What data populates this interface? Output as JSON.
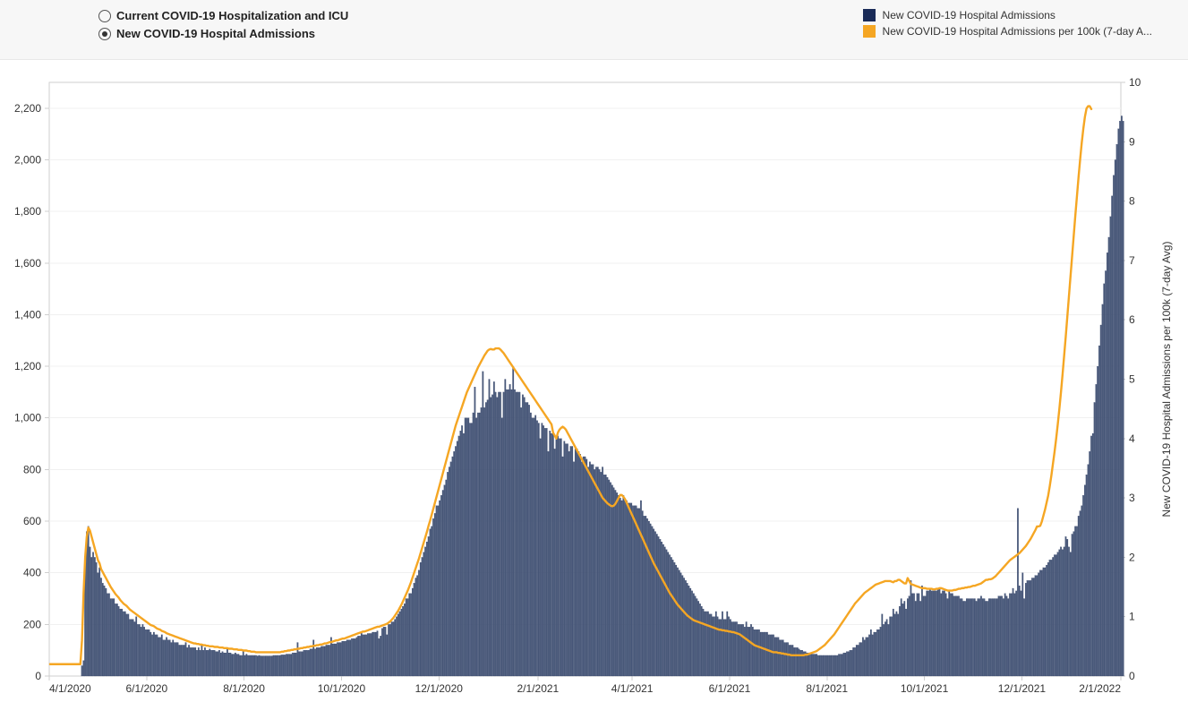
{
  "header": {
    "radios": [
      {
        "label": "Current COVID-19 Hospitalization and ICU",
        "selected": false
      },
      {
        "label": "New COVID-19 Hospital Admissions",
        "selected": true
      }
    ]
  },
  "legend": {
    "items": [
      {
        "label": "New COVID-19 Hospital Admissions",
        "color": "#1a2b58",
        "type": "bar"
      },
      {
        "label": "New COVID-19 Hospital Admissions per 100k (7-day A...",
        "color": "#f5a623",
        "type": "line"
      }
    ]
  },
  "chart": {
    "type": "bar+line",
    "background_color": "#ffffff",
    "grid_color": "#f0f0f0",
    "axis_color": "#cfcfcf",
    "bar_color": "#4a5a7a",
    "bar_edge_color": "#1a2b58",
    "line_color": "#f5a623",
    "line_width": 2.4,
    "y_left": {
      "min": 0,
      "max": 2300,
      "ticks": [
        0,
        200,
        400,
        600,
        800,
        1000,
        1200,
        1400,
        1600,
        1800,
        2000,
        2200
      ],
      "label_fontsize": 12
    },
    "y_right": {
      "min": 0,
      "max": 10,
      "ticks": [
        0,
        1,
        2,
        3,
        4,
        5,
        6,
        7,
        8,
        9,
        10
      ],
      "label": "New COVID-19 Hospital Admissions per 100k (7-day Avg)",
      "label_fontsize": 12
    },
    "x": {
      "start": "4/1/2020",
      "end": "2/1/2022",
      "tick_labels": [
        "4/1/2020",
        "6/1/2020",
        "8/1/2020",
        "10/1/2020",
        "12/1/2020",
        "2/1/2021",
        "4/1/2021",
        "6/1/2021",
        "8/1/2021",
        "10/1/2021",
        "12/1/2021",
        "2/1/2022"
      ],
      "tick_days": [
        0,
        61,
        122,
        183,
        244,
        306,
        365,
        426,
        487,
        548,
        609,
        671
      ]
    },
    "total_days": 671,
    "bars": [
      0,
      0,
      0,
      0,
      0,
      0,
      0,
      0,
      0,
      0,
      0,
      0,
      0,
      0,
      0,
      0,
      0,
      0,
      0,
      0,
      40,
      60,
      440,
      560,
      580,
      500,
      460,
      480,
      460,
      440,
      400,
      420,
      380,
      360,
      350,
      340,
      320,
      320,
      300,
      300,
      300,
      280,
      280,
      270,
      260,
      260,
      250,
      250,
      240,
      240,
      220,
      220,
      220,
      210,
      230,
      200,
      200,
      190,
      200,
      190,
      180,
      180,
      180,
      170,
      160,
      170,
      160,
      160,
      150,
      150,
      160,
      140,
      140,
      150,
      140,
      140,
      130,
      140,
      130,
      130,
      130,
      120,
      120,
      120,
      120,
      130,
      110,
      120,
      110,
      110,
      110,
      110,
      100,
      110,
      100,
      120,
      100,
      110,
      100,
      100,
      105,
      100,
      100,
      100,
      95,
      95,
      100,
      90,
      95,
      90,
      90,
      110,
      90,
      90,
      85,
      85,
      90,
      85,
      85,
      80,
      80,
      100,
      80,
      85,
      80,
      80,
      80,
      80,
      80,
      80,
      78,
      80,
      78,
      78,
      78,
      78,
      78,
      78,
      78,
      78,
      80,
      80,
      80,
      80,
      80,
      82,
      82,
      82,
      85,
      85,
      85,
      85,
      90,
      90,
      90,
      130,
      95,
      95,
      95,
      100,
      100,
      100,
      100,
      105,
      105,
      140,
      105,
      110,
      110,
      110,
      115,
      115,
      115,
      120,
      120,
      120,
      150,
      125,
      125,
      125,
      130,
      130,
      130,
      135,
      135,
      135,
      140,
      140,
      140,
      145,
      145,
      145,
      150,
      155,
      155,
      170,
      160,
      160,
      160,
      165,
      165,
      165,
      170,
      170,
      170,
      175,
      145,
      155,
      185,
      190,
      190,
      160,
      200,
      200,
      210,
      210,
      220,
      230,
      240,
      250,
      260,
      270,
      280,
      300,
      300,
      320,
      320,
      340,
      360,
      380,
      390,
      410,
      440,
      460,
      480,
      500,
      520,
      540,
      570,
      580,
      610,
      630,
      660,
      660,
      680,
      700,
      720,
      740,
      760,
      790,
      810,
      830,
      850,
      870,
      890,
      910,
      930,
      950,
      970,
      940,
      1000,
      1000,
      1000,
      980,
      980,
      1020,
      1120,
      1000,
      1020,
      1020,
      1040,
      1180,
      1040,
      1060,
      1070,
      1150,
      1080,
      1090,
      1140,
      1100,
      1080,
      1100,
      1100,
      1000,
      1100,
      1150,
      1110,
      1110,
      1130,
      1110,
      1200,
      1110,
      1100,
      1100,
      1100,
      1040,
      1090,
      1080,
      1060,
      1060,
      1050,
      1020,
      1000,
      1000,
      1010,
      990,
      980,
      920,
      980,
      970,
      960,
      960,
      870,
      950,
      940,
      940,
      880,
      930,
      930,
      920,
      920,
      850,
      910,
      900,
      900,
      870,
      890,
      890,
      830,
      880,
      880,
      870,
      860,
      830,
      850,
      850,
      840,
      810,
      830,
      820,
      820,
      800,
      810,
      810,
      800,
      790,
      810,
      780,
      780,
      770,
      760,
      750,
      740,
      730,
      720,
      710,
      700,
      690,
      680,
      700,
      680,
      680,
      670,
      670,
      670,
      660,
      660,
      660,
      650,
      650,
      680,
      640,
      620,
      620,
      610,
      600,
      590,
      580,
      570,
      560,
      550,
      540,
      530,
      520,
      510,
      500,
      490,
      480,
      470,
      460,
      450,
      440,
      430,
      420,
      410,
      400,
      390,
      380,
      370,
      360,
      350,
      340,
      330,
      320,
      310,
      300,
      290,
      280,
      270,
      260,
      250,
      250,
      250,
      240,
      240,
      230,
      230,
      250,
      230,
      220,
      220,
      250,
      220,
      220,
      250,
      230,
      220,
      210,
      210,
      210,
      210,
      200,
      200,
      200,
      200,
      190,
      210,
      190,
      190,
      200,
      190,
      180,
      180,
      180,
      180,
      170,
      170,
      170,
      170,
      170,
      160,
      160,
      160,
      160,
      150,
      150,
      150,
      140,
      140,
      140,
      130,
      130,
      130,
      120,
      120,
      120,
      110,
      110,
      110,
      105,
      100,
      100,
      95,
      95,
      90,
      90,
      90,
      85,
      85,
      85,
      85,
      80,
      80,
      80,
      80,
      80,
      80,
      80,
      80,
      80,
      80,
      80,
      80,
      80,
      85,
      85,
      85,
      90,
      90,
      95,
      95,
      100,
      100,
      110,
      110,
      120,
      120,
      130,
      130,
      150,
      140,
      150,
      150,
      160,
      180,
      160,
      170,
      170,
      180,
      180,
      190,
      240,
      200,
      210,
      220,
      200,
      230,
      230,
      260,
      240,
      250,
      240,
      270,
      300,
      280,
      290,
      260,
      300,
      310,
      370,
      320,
      320,
      290,
      320,
      320,
      290,
      350,
      310,
      310,
      330,
      330,
      340,
      330,
      330,
      330,
      330,
      340,
      340,
      320,
      330,
      330,
      320,
      300,
      330,
      320,
      320,
      310,
      310,
      310,
      310,
      300,
      300,
      290,
      290,
      300,
      300,
      300,
      300,
      300,
      300,
      290,
      300,
      300,
      310,
      300,
      300,
      290,
      290,
      300,
      300,
      300,
      300,
      300,
      300,
      310,
      310,
      310,
      300,
      320,
      310,
      300,
      320,
      320,
      340,
      320,
      330,
      650,
      350,
      330,
      400,
      300,
      360,
      370,
      370,
      370,
      380,
      380,
      390,
      390,
      400,
      410,
      410,
      420,
      420,
      430,
      440,
      450,
      450,
      460,
      470,
      470,
      480,
      490,
      500,
      490,
      500,
      540,
      530,
      500,
      480,
      550,
      560,
      580,
      580,
      620,
      640,
      660,
      700,
      740,
      780,
      820,
      870,
      930,
      940,
      1060,
      1130,
      1200,
      1280,
      1360,
      1440,
      1520,
      1570,
      1640,
      1700,
      1780,
      1860,
      1940,
      2000,
      2060,
      2120,
      2150,
      2170,
      2150
    ],
    "line": [
      0.2,
      0.2,
      0.2,
      0.2,
      0.2,
      0.2,
      0.2,
      0.2,
      0.2,
      0.2,
      0.2,
      0.2,
      0.2,
      0.2,
      0.2,
      0.2,
      0.2,
      0.2,
      0.2,
      0.2,
      0.6,
      1.4,
      2.0,
      2.35,
      2.5,
      2.45,
      2.35,
      2.25,
      2.15,
      2.05,
      1.95,
      1.9,
      1.8,
      1.75,
      1.7,
      1.65,
      1.6,
      1.55,
      1.5,
      1.46,
      1.42,
      1.38,
      1.35,
      1.32,
      1.28,
      1.25,
      1.22,
      1.2,
      1.18,
      1.15,
      1.12,
      1.1,
      1.08,
      1.06,
      1.04,
      1.02,
      1.0,
      0.98,
      0.96,
      0.94,
      0.92,
      0.9,
      0.88,
      0.86,
      0.85,
      0.84,
      0.82,
      0.8,
      0.79,
      0.78,
      0.76,
      0.75,
      0.74,
      0.72,
      0.71,
      0.7,
      0.69,
      0.68,
      0.67,
      0.66,
      0.65,
      0.64,
      0.63,
      0.62,
      0.61,
      0.6,
      0.59,
      0.58,
      0.57,
      0.56,
      0.55,
      0.55,
      0.54,
      0.54,
      0.53,
      0.53,
      0.52,
      0.52,
      0.51,
      0.51,
      0.5,
      0.5,
      0.5,
      0.49,
      0.49,
      0.49,
      0.48,
      0.48,
      0.48,
      0.47,
      0.47,
      0.47,
      0.46,
      0.46,
      0.46,
      0.45,
      0.45,
      0.45,
      0.44,
      0.44,
      0.44,
      0.43,
      0.43,
      0.43,
      0.42,
      0.42,
      0.41,
      0.41,
      0.41,
      0.4,
      0.4,
      0.4,
      0.4,
      0.4,
      0.4,
      0.4,
      0.4,
      0.4,
      0.4,
      0.4,
      0.4,
      0.4,
      0.4,
      0.4,
      0.4,
      0.41,
      0.41,
      0.42,
      0.42,
      0.43,
      0.43,
      0.44,
      0.44,
      0.45,
      0.45,
      0.46,
      0.46,
      0.47,
      0.47,
      0.48,
      0.48,
      0.49,
      0.49,
      0.5,
      0.5,
      0.51,
      0.51,
      0.52,
      0.52,
      0.53,
      0.53,
      0.54,
      0.55,
      0.55,
      0.56,
      0.57,
      0.57,
      0.58,
      0.59,
      0.6,
      0.6,
      0.61,
      0.62,
      0.63,
      0.63,
      0.64,
      0.65,
      0.66,
      0.67,
      0.68,
      0.69,
      0.7,
      0.71,
      0.72,
      0.73,
      0.74,
      0.75,
      0.75,
      0.76,
      0.77,
      0.78,
      0.79,
      0.8,
      0.81,
      0.82,
      0.83,
      0.83,
      0.84,
      0.85,
      0.86,
      0.87,
      0.88,
      0.9,
      0.92,
      0.95,
      0.98,
      1.02,
      1.06,
      1.1,
      1.15,
      1.2,
      1.26,
      1.32,
      1.38,
      1.44,
      1.51,
      1.58,
      1.66,
      1.74,
      1.82,
      1.9,
      1.98,
      2.07,
      2.16,
      2.25,
      2.34,
      2.43,
      2.53,
      2.62,
      2.72,
      2.82,
      2.92,
      3.02,
      3.12,
      3.22,
      3.32,
      3.42,
      3.52,
      3.62,
      3.72,
      3.82,
      3.92,
      4.02,
      4.12,
      4.22,
      4.3,
      4.38,
      4.46,
      4.54,
      4.62,
      4.7,
      4.78,
      4.84,
      4.9,
      4.96,
      5.02,
      5.08,
      5.14,
      5.2,
      5.25,
      5.3,
      5.35,
      5.4,
      5.44,
      5.48,
      5.5,
      5.51,
      5.5,
      5.5,
      5.52,
      5.52,
      5.52,
      5.5,
      5.47,
      5.44,
      5.4,
      5.36,
      5.32,
      5.28,
      5.24,
      5.2,
      5.16,
      5.12,
      5.08,
      5.04,
      5.0,
      4.96,
      4.92,
      4.88,
      4.84,
      4.8,
      4.76,
      4.72,
      4.68,
      4.64,
      4.6,
      4.56,
      4.52,
      4.48,
      4.44,
      4.4,
      4.36,
      4.32,
      4.28,
      4.24,
      4.1,
      4.05,
      4.0,
      4.1,
      4.15,
      4.18,
      4.2,
      4.18,
      4.15,
      4.1,
      4.05,
      4.0,
      3.95,
      3.9,
      3.85,
      3.8,
      3.75,
      3.7,
      3.65,
      3.6,
      3.55,
      3.5,
      3.45,
      3.4,
      3.35,
      3.3,
      3.25,
      3.2,
      3.15,
      3.1,
      3.05,
      3.0,
      2.97,
      2.94,
      2.91,
      2.89,
      2.87,
      2.86,
      2.87,
      2.9,
      2.95,
      3.0,
      3.05,
      3.05,
      3.02,
      2.98,
      2.92,
      2.86,
      2.8,
      2.74,
      2.68,
      2.62,
      2.56,
      2.5,
      2.44,
      2.38,
      2.32,
      2.26,
      2.2,
      2.14,
      2.08,
      2.02,
      1.96,
      1.9,
      1.85,
      1.8,
      1.75,
      1.7,
      1.65,
      1.6,
      1.55,
      1.5,
      1.45,
      1.4,
      1.36,
      1.32,
      1.28,
      1.24,
      1.2,
      1.17,
      1.14,
      1.11,
      1.08,
      1.05,
      1.02,
      1.0,
      0.98,
      0.96,
      0.94,
      0.93,
      0.92,
      0.91,
      0.9,
      0.89,
      0.88,
      0.87,
      0.86,
      0.85,
      0.84,
      0.83,
      0.82,
      0.81,
      0.8,
      0.79,
      0.78,
      0.78,
      0.77,
      0.77,
      0.76,
      0.76,
      0.75,
      0.75,
      0.74,
      0.74,
      0.73,
      0.72,
      0.71,
      0.7,
      0.68,
      0.66,
      0.64,
      0.62,
      0.6,
      0.58,
      0.56,
      0.54,
      0.52,
      0.51,
      0.5,
      0.49,
      0.48,
      0.47,
      0.46,
      0.45,
      0.44,
      0.43,
      0.42,
      0.41,
      0.4,
      0.4,
      0.4,
      0.39,
      0.39,
      0.38,
      0.38,
      0.37,
      0.37,
      0.36,
      0.36,
      0.35,
      0.35,
      0.35,
      0.35,
      0.35,
      0.35,
      0.35,
      0.35,
      0.35,
      0.36,
      0.36,
      0.37,
      0.38,
      0.39,
      0.4,
      0.41,
      0.42,
      0.44,
      0.46,
      0.48,
      0.5,
      0.52,
      0.55,
      0.58,
      0.61,
      0.64,
      0.67,
      0.7,
      0.74,
      0.78,
      0.82,
      0.86,
      0.9,
      0.94,
      0.98,
      1.02,
      1.06,
      1.1,
      1.14,
      1.18,
      1.22,
      1.25,
      1.28,
      1.31,
      1.34,
      1.37,
      1.4,
      1.42,
      1.44,
      1.46,
      1.48,
      1.5,
      1.52,
      1.54,
      1.55,
      1.56,
      1.57,
      1.58,
      1.59,
      1.6,
      1.6,
      1.6,
      1.6,
      1.59,
      1.58,
      1.6,
      1.6,
      1.62,
      1.62,
      1.6,
      1.58,
      1.56,
      1.56,
      1.65,
      1.6,
      1.55,
      1.54,
      1.53,
      1.52,
      1.51,
      1.5,
      1.49,
      1.48,
      1.48,
      1.48,
      1.47,
      1.47,
      1.47,
      1.47,
      1.46,
      1.46,
      1.47,
      1.47,
      1.48,
      1.48,
      1.47,
      1.46,
      1.45,
      1.44,
      1.44,
      1.44,
      1.44,
      1.45,
      1.45,
      1.46,
      1.47,
      1.47,
      1.48,
      1.48,
      1.49,
      1.49,
      1.5,
      1.5,
      1.51,
      1.52,
      1.52,
      1.53,
      1.54,
      1.55,
      1.56,
      1.58,
      1.6,
      1.62,
      1.62,
      1.63,
      1.63,
      1.64,
      1.66,
      1.68,
      1.71,
      1.74,
      1.77,
      1.8,
      1.83,
      1.86,
      1.89,
      1.92,
      1.95,
      1.97,
      1.99,
      2.01,
      2.03,
      2.05,
      2.07,
      2.1,
      2.13,
      2.16,
      2.19,
      2.23,
      2.27,
      2.31,
      2.36,
      2.41,
      2.46,
      2.52,
      2.52,
      2.53,
      2.6,
      2.7,
      2.8,
      2.92,
      3.04,
      3.2,
      3.38,
      3.58,
      3.78,
      4.0,
      4.24,
      4.5,
      4.78,
      5.08,
      5.4,
      5.72,
      6.06,
      6.4,
      6.74,
      7.08,
      7.42,
      7.76,
      8.08,
      8.4,
      8.7,
      8.98,
      9.22,
      9.42,
      9.56,
      9.6,
      9.6,
      9.55
    ]
  }
}
